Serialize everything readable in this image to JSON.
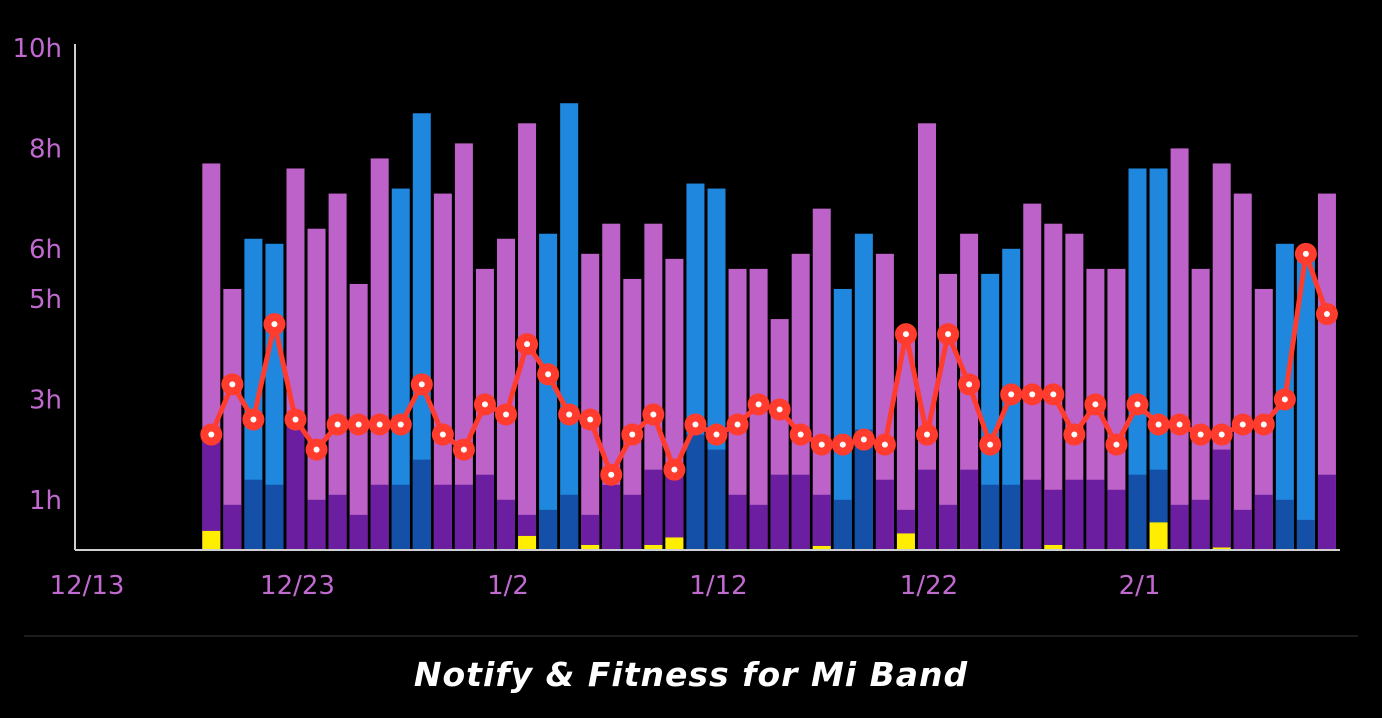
{
  "app_title": "Notify & Fitness for Mi Band",
  "colors": {
    "background": "#000000",
    "axis_text": "#c06ad0",
    "light_sleep_purple": "#bd62c8",
    "deep_sleep_purple": "#6b1fa0",
    "light_sleep_blue": "#2087de",
    "deep_sleep_blue": "#1550a8",
    "awake": "#ffee00",
    "line": "#ff3c2e"
  },
  "chart_data": {
    "type": "bar",
    "ylim": [
      0,
      10
    ],
    "y_ticks": [
      {
        "label": "10h",
        "value": 10
      },
      {
        "label": "8h",
        "value": 8
      },
      {
        "label": "6h",
        "value": 6
      },
      {
        "label": "5h",
        "value": 5
      },
      {
        "label": "3h",
        "value": 3
      },
      {
        "label": "1h",
        "value": 1
      }
    ],
    "x_ticks": [
      {
        "label": "12/13",
        "index": 0
      },
      {
        "label": "12/23",
        "index": 10
      },
      {
        "label": "1/2",
        "index": 20
      },
      {
        "label": "1/12",
        "index": 30
      },
      {
        "label": "1/22",
        "index": 40
      },
      {
        "label": "2/1",
        "index": 50
      }
    ],
    "first_index": 6,
    "total": [
      7.7,
      5.2,
      6.2,
      6.1,
      7.6,
      6.4,
      7.1,
      5.3,
      7.8,
      7.2,
      8.7,
      7.1,
      8.1,
      5.6,
      6.2,
      8.5,
      6.3,
      8.9,
      5.9,
      6.5,
      5.4,
      6.5,
      5.8,
      7.3,
      7.2,
      5.6,
      5.6,
      4.6,
      5.9,
      6.8,
      5.2,
      6.3,
      5.9,
      4.4,
      8.5,
      5.5,
      6.3,
      5.5,
      6.0,
      6.9,
      6.5,
      6.3,
      5.6,
      5.6,
      7.6,
      7.6,
      8.0,
      5.6,
      7.7,
      7.1,
      5.2,
      6.1,
      6.0,
      7.1
    ],
    "deep": [
      2.3,
      0.9,
      1.4,
      1.3,
      2.7,
      1.0,
      1.1,
      0.7,
      1.3,
      1.3,
      1.8,
      1.3,
      1.3,
      1.5,
      1.0,
      0.7,
      0.8,
      1.1,
      0.7,
      1.3,
      1.1,
      1.6,
      1.6,
      2.3,
      2.0,
      1.1,
      0.9,
      1.5,
      1.5,
      1.1,
      1.0,
      2.4,
      1.4,
      0.8,
      1.6,
      0.9,
      1.6,
      1.3,
      1.3,
      1.4,
      1.2,
      1.4,
      1.4,
      1.2,
      1.5,
      1.6,
      0.9,
      1.0,
      2.0,
      0.8,
      1.1,
      1.0,
      0.6,
      1.5
    ],
    "awake": [
      0.38,
      0,
      0,
      0,
      0,
      0,
      0,
      0,
      0,
      0,
      0,
      0,
      0,
      0,
      0,
      0.28,
      0,
      0,
      0.1,
      0,
      0,
      0.1,
      0.25,
      0,
      0,
      0,
      0,
      0,
      0,
      0.08,
      0,
      0,
      0,
      0.33,
      0,
      0,
      0,
      0,
      0,
      0,
      0.1,
      0,
      0,
      0,
      0,
      0.55,
      0,
      0,
      0.05,
      0,
      0,
      0,
      0,
      0
    ],
    "blue": [
      false,
      false,
      true,
      true,
      false,
      false,
      false,
      false,
      false,
      true,
      true,
      false,
      false,
      false,
      false,
      false,
      true,
      true,
      false,
      false,
      false,
      false,
      false,
      true,
      true,
      false,
      false,
      false,
      false,
      false,
      true,
      true,
      false,
      false,
      false,
      false,
      false,
      true,
      true,
      false,
      false,
      false,
      false,
      false,
      true,
      true,
      false,
      false,
      false,
      false,
      false,
      true,
      true,
      false
    ],
    "line": [
      2.3,
      3.3,
      2.6,
      4.5,
      2.6,
      2.0,
      2.5,
      2.5,
      2.5,
      2.5,
      3.3,
      2.3,
      2.0,
      2.9,
      2.7,
      4.1,
      3.5,
      2.7,
      2.6,
      1.5,
      2.3,
      2.7,
      1.6,
      2.5,
      2.3,
      2.5,
      2.9,
      2.8,
      2.3,
      2.1,
      2.1,
      2.2,
      2.1,
      4.3,
      2.3,
      4.3,
      3.3,
      2.1,
      3.1,
      3.1,
      3.1,
      2.3,
      2.9,
      2.1,
      2.9,
      2.5,
      2.5,
      2.3,
      2.3,
      2.5,
      2.5,
      3.0,
      5.9,
      4.7
    ]
  }
}
